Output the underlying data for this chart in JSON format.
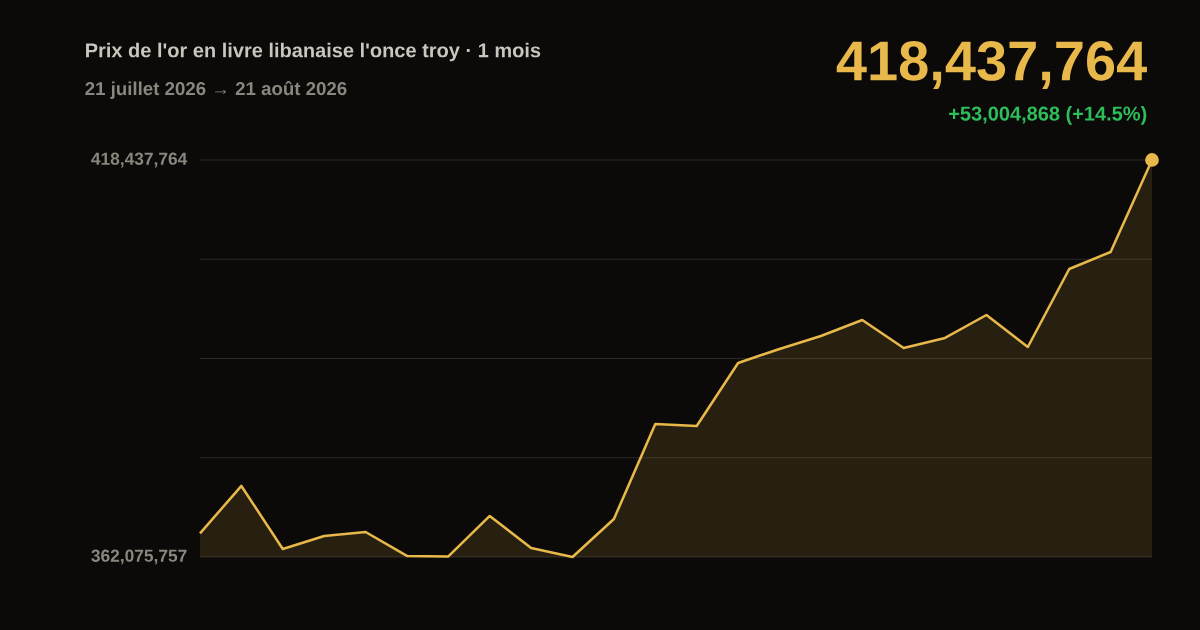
{
  "chart_data": {
    "type": "area",
    "title": "Prix de l'or en livre libanaise l'once troy · 1 mois",
    "subtitle": "21 juillet 2026 → 21 août 2026",
    "categories": [
      null,
      null,
      null,
      null,
      null,
      null,
      null,
      null,
      null,
      null,
      null,
      null,
      null,
      null,
      null,
      null,
      null,
      null,
      null,
      null,
      null,
      null,
      null,
      null
    ],
    "values": [
      365432896,
      372160000,
      363210000,
      365060000,
      365620000,
      362220000,
      362150000,
      367900000,
      363350000,
      362075757,
      367470000,
      380960000,
      380670000,
      389620000,
      391610000,
      393450000,
      395720000,
      391750000,
      393170000,
      396430000,
      391890000,
      402960000,
      405380000,
      418437764
    ],
    "color": "#e8b84a",
    "ylim": [
      362075757,
      418437764
    ],
    "yticks": [
      {
        "value": 362075757,
        "label": "362,075,757"
      },
      {
        "value": 376166259,
        "label": null
      },
      {
        "value": 390256760,
        "label": null
      },
      {
        "value": 404347262,
        "label": null
      },
      {
        "value": 418437764,
        "label": "418,437,764"
      }
    ],
    "grid": "y",
    "annotations": [
      "418,437,764",
      "+53,004,868 (+14.5%)"
    ]
  }
}
